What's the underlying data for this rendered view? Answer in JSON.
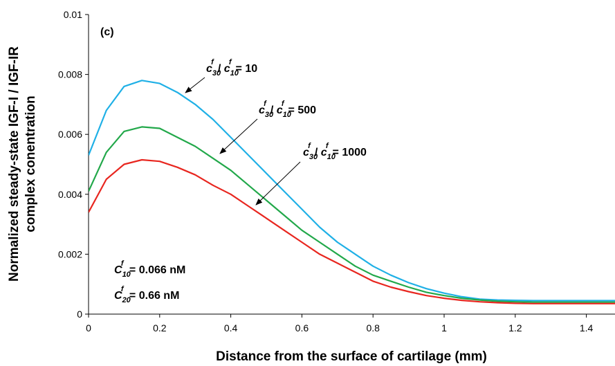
{
  "chart_data": {
    "type": "line",
    "panel_label": "(c)",
    "xlabel": "Distance from the surface of cartilage (mm)",
    "ylabel_lines": [
      "Normalized steady-state IGF-I / IGF-IR",
      "complex conentration"
    ],
    "xlim": [
      0,
      1.5
    ],
    "ylim": [
      0,
      0.01
    ],
    "x_ticks": [
      "0",
      "0.2",
      "0.4",
      "0.6",
      "0.8",
      "1",
      "1.2",
      "1.4"
    ],
    "y_ticks": [
      "0",
      "0.002",
      "0.004",
      "0.006",
      "0.008",
      "0.01"
    ],
    "grid": false,
    "series": [
      {
        "ratio_value": "10",
        "color": "#1fb0e6",
        "x": [
          0,
          0.05,
          0.1,
          0.15,
          0.2,
          0.25,
          0.3,
          0.35,
          0.4,
          0.45,
          0.5,
          0.55,
          0.6,
          0.65,
          0.7,
          0.75,
          0.8,
          0.85,
          0.9,
          0.95,
          1.0,
          1.05,
          1.1,
          1.15,
          1.2,
          1.25,
          1.3,
          1.35,
          1.4,
          1.45,
          1.5
        ],
        "y": [
          0.0053,
          0.0068,
          0.0076,
          0.0078,
          0.0077,
          0.0074,
          0.007,
          0.0065,
          0.0059,
          0.0053,
          0.0047,
          0.0041,
          0.0035,
          0.0029,
          0.0024,
          0.002,
          0.0016,
          0.0013,
          0.00105,
          0.00085,
          0.0007,
          0.00058,
          0.0005,
          0.00047,
          0.00046,
          0.00045,
          0.00045,
          0.00045,
          0.00045,
          0.00045,
          0.00045
        ]
      },
      {
        "ratio_value": "500",
        "color": "#22a84a",
        "x": [
          0,
          0.05,
          0.1,
          0.15,
          0.2,
          0.25,
          0.3,
          0.35,
          0.4,
          0.45,
          0.5,
          0.55,
          0.6,
          0.65,
          0.7,
          0.75,
          0.8,
          0.85,
          0.9,
          0.95,
          1.0,
          1.05,
          1.1,
          1.15,
          1.2,
          1.25,
          1.3,
          1.35,
          1.4,
          1.45,
          1.5
        ],
        "y": [
          0.0041,
          0.0054,
          0.0061,
          0.00625,
          0.0062,
          0.0059,
          0.0056,
          0.0052,
          0.0048,
          0.0043,
          0.0038,
          0.0033,
          0.0028,
          0.0024,
          0.002,
          0.0016,
          0.0013,
          0.0011,
          0.0009,
          0.00073,
          0.00062,
          0.00053,
          0.00047,
          0.00043,
          0.00041,
          0.0004,
          0.0004,
          0.0004,
          0.0004,
          0.0004,
          0.0004
        ]
      },
      {
        "ratio_value": "1000",
        "color": "#e8261f",
        "x": [
          0,
          0.05,
          0.1,
          0.15,
          0.2,
          0.25,
          0.3,
          0.35,
          0.4,
          0.45,
          0.5,
          0.55,
          0.6,
          0.65,
          0.7,
          0.75,
          0.8,
          0.85,
          0.9,
          0.95,
          1.0,
          1.05,
          1.1,
          1.15,
          1.2,
          1.25,
          1.3,
          1.35,
          1.4,
          1.45,
          1.5
        ],
        "y": [
          0.0034,
          0.0045,
          0.005,
          0.00515,
          0.0051,
          0.0049,
          0.00465,
          0.0043,
          0.004,
          0.0036,
          0.0032,
          0.0028,
          0.0024,
          0.002,
          0.0017,
          0.0014,
          0.0011,
          0.0009,
          0.00075,
          0.00062,
          0.00053,
          0.00046,
          0.00041,
          0.00038,
          0.00036,
          0.00035,
          0.00035,
          0.00035,
          0.00035,
          0.00035,
          0.00035
        ]
      }
    ],
    "ratio_label": {
      "num_letter": "c",
      "num_sub": "30",
      "den_letter": "c",
      "den_sub": "10",
      "sup": "f",
      "separator": "/",
      "equals": "="
    },
    "parameters": [
      {
        "letter": "C",
        "sub": "10",
        "sup": "f",
        "value": "= 0.066 nM"
      },
      {
        "letter": "C",
        "sub": "20",
        "sup": "f",
        "value": "= 0.66 nM"
      }
    ]
  }
}
